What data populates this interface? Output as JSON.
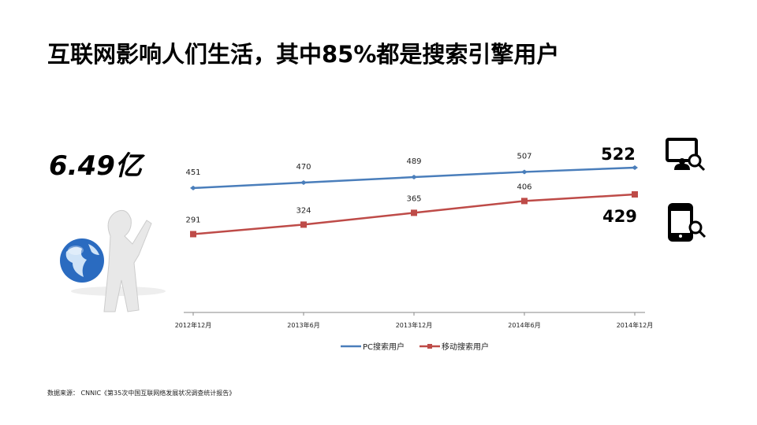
{
  "title": "互联网影响人们生活，其中85%都是搜索引擎用户",
  "highlight": "6.49亿",
  "source": "数据来源： CNNIC《第35次中国互联网络发展状况调查统计报告》",
  "chart_data": {
    "type": "line",
    "categories": [
      "2012年12月",
      "2013年6月",
      "2013年12月",
      "2014年6月",
      "2014年12月"
    ],
    "series": [
      {
        "name": "PC搜索用户",
        "values": [
          451,
          470,
          489,
          507,
          522
        ],
        "color": "#4a7ebb",
        "marker": "diamond"
      },
      {
        "name": "移动搜索用户",
        "values": [
          291,
          324,
          365,
          406,
          429
        ],
        "color": "#be4b48",
        "marker": "square"
      }
    ],
    "ylim": [
      0,
      600
    ],
    "grid": false,
    "legend": "bottom",
    "end_labels": [
      "522",
      "429"
    ]
  },
  "icons": {
    "pc": "monitor-search-icon",
    "mobile": "phone-search-icon",
    "illustration": "globe-person-icon"
  }
}
